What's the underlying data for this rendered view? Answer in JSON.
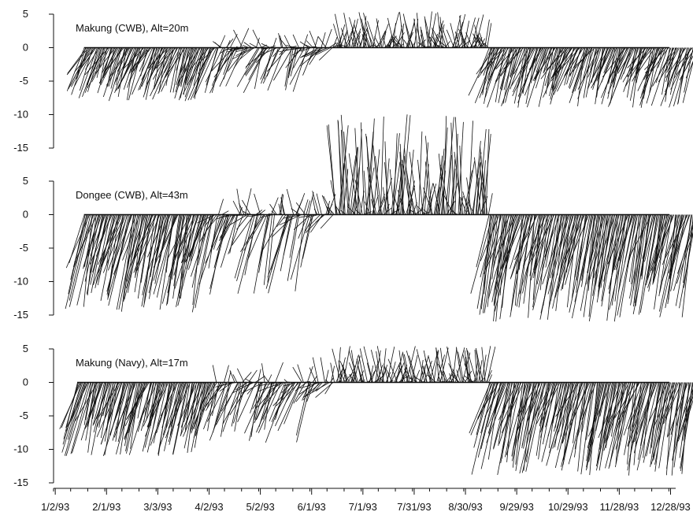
{
  "chart_data": {
    "type": "wind-stick",
    "title": "",
    "xlabel": "",
    "ylabel": "",
    "x_ticks": [
      "1/2/93",
      "2/1/93",
      "3/3/93",
      "4/2/93",
      "5/2/93",
      "6/1/93",
      "7/1/93",
      "7/31/93",
      "8/30/93",
      "9/29/93",
      "10/29/93",
      "11/28/93",
      "12/28/93"
    ],
    "xlim": [
      "1/1/93",
      "12/31/93"
    ],
    "panels": [
      {
        "title": "Makung (CWB), Alt=20m",
        "ylim": [
          -15,
          5
        ],
        "y_ticks": [
          "5",
          "0",
          "-5",
          "-10",
          "-15"
        ],
        "segments": [
          {
            "from": "1/5/93",
            "to": "3/22/93",
            "v_min": -8,
            "v_max": -3
          },
          {
            "from": "3/22/93",
            "to": "5/20/93",
            "v_min": -7,
            "v_max": 3
          },
          {
            "from": "5/20/93",
            "to": "6/1/93",
            "v_min": -3,
            "v_max": 3
          },
          {
            "from": "6/1/93",
            "to": "8/30/93",
            "v_min": 0,
            "v_max": 5.5
          },
          {
            "from": "8/30/93",
            "to": "12/31/93",
            "v_min": -9,
            "v_max": -3
          }
        ]
      },
      {
        "title": "Dongee (CWB), Alt=43m",
        "ylim": [
          -15,
          5
        ],
        "y_ticks": [
          "5",
          "0",
          "-5",
          "-10",
          "-15"
        ],
        "segments": [
          {
            "from": "1/5/93",
            "to": "3/22/93",
            "v_min": -15,
            "v_max": -6
          },
          {
            "from": "3/22/93",
            "to": "5/20/93",
            "v_min": -12,
            "v_max": 4
          },
          {
            "from": "5/20/93",
            "to": "6/1/93",
            "v_min": -3,
            "v_max": 4
          },
          {
            "from": "6/1/93",
            "to": "8/30/93",
            "v_min": 0,
            "v_max": 15
          },
          {
            "from": "8/30/93",
            "to": "12/31/93",
            "v_min": -16,
            "v_max": -6
          }
        ]
      },
      {
        "title": "Makung (Navy), Alt=17m",
        "ylim": [
          -15,
          5
        ],
        "y_ticks": [
          "5",
          "0",
          "-5",
          "-10",
          "-15"
        ],
        "segments": [
          {
            "from": "1/1/93",
            "to": "3/22/93",
            "v_min": -11,
            "v_max": -5
          },
          {
            "from": "3/22/93",
            "to": "5/20/93",
            "v_min": -9,
            "v_max": 3
          },
          {
            "from": "5/20/93",
            "to": "6/1/93",
            "v_min": -3,
            "v_max": 4
          },
          {
            "from": "6/1/93",
            "to": "8/30/93",
            "v_min": 0,
            "v_max": 5.5
          },
          {
            "from": "8/30/93",
            "to": "12/31/93",
            "v_min": -14,
            "v_max": -5
          }
        ]
      }
    ]
  }
}
